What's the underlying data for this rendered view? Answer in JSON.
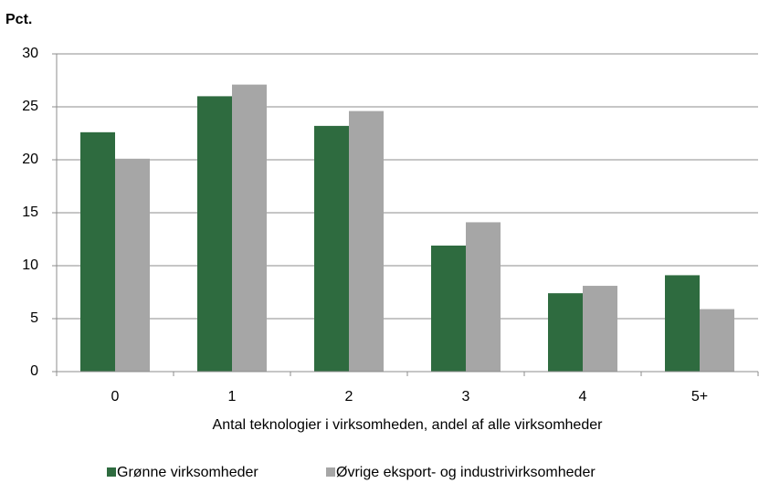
{
  "chart_data": {
    "type": "bar",
    "ylabel": "Pct.",
    "xlabel": "Antal teknologier i virksomheden, andel af alle virksomheder",
    "categories": [
      "0",
      "1",
      "2",
      "3",
      "4",
      "5+"
    ],
    "series": [
      {
        "name": "Grønne virksomheder",
        "color": "#2e6b3f",
        "values": [
          22.6,
          26,
          23.2,
          11.9,
          7.4,
          9.1
        ]
      },
      {
        "name": "Øvrige eksport- og industrivirksomheder",
        "color": "#a6a6a6",
        "values": [
          20.1,
          27.1,
          24.6,
          14.1,
          8.1,
          5.9
        ]
      }
    ],
    "ylim": [
      0,
      30
    ],
    "yticks": [
      0,
      5,
      10,
      15,
      20,
      25,
      30
    ],
    "grid": true,
    "legend": "bottom"
  }
}
